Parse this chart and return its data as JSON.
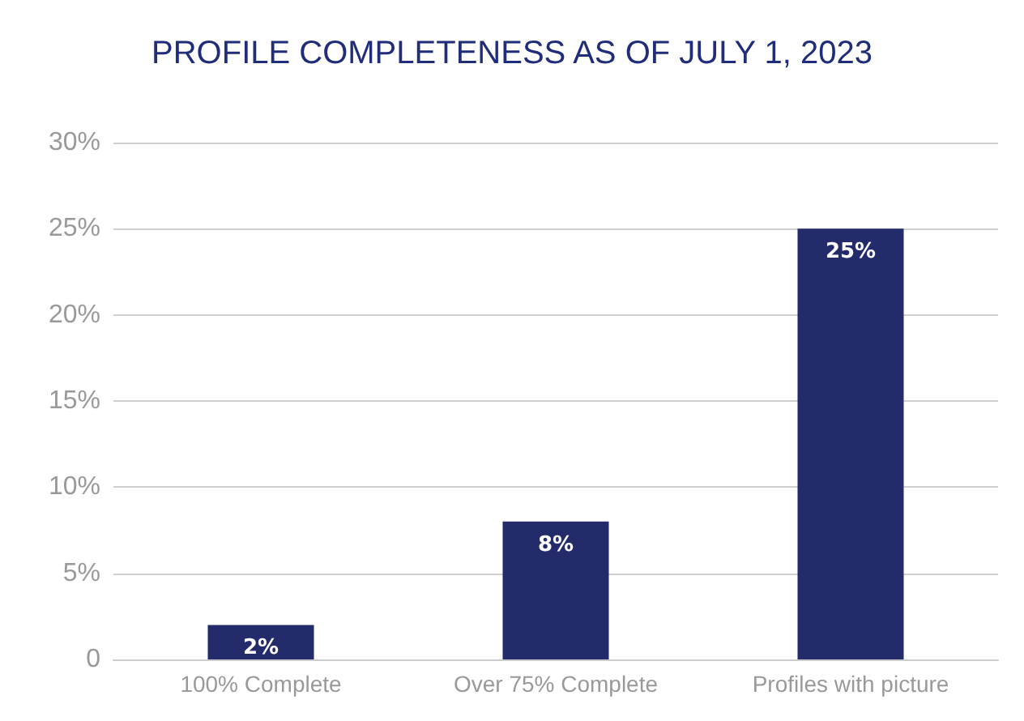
{
  "chart_data": {
    "type": "bar",
    "title": "PROFILE COMPLETENESS AS OF JULY 1, 2023",
    "categories": [
      "100% Complete",
      "Over 75% Complete",
      "Profiles with picture"
    ],
    "values": [
      2,
      8,
      25
    ],
    "value_labels": [
      "2%",
      "8%",
      "25%"
    ],
    "color": "#232b6b",
    "ylim": [
      0,
      30
    ],
    "yticks": [
      {
        "value": 0,
        "label": "0"
      },
      {
        "value": 5,
        "label": "5%"
      },
      {
        "value": 10,
        "label": "10%"
      },
      {
        "value": 15,
        "label": "15%"
      },
      {
        "value": 20,
        "label": "20%"
      },
      {
        "value": 25,
        "label": "25%"
      },
      {
        "value": 30,
        "label": "30%"
      }
    ],
    "grid": "y"
  }
}
